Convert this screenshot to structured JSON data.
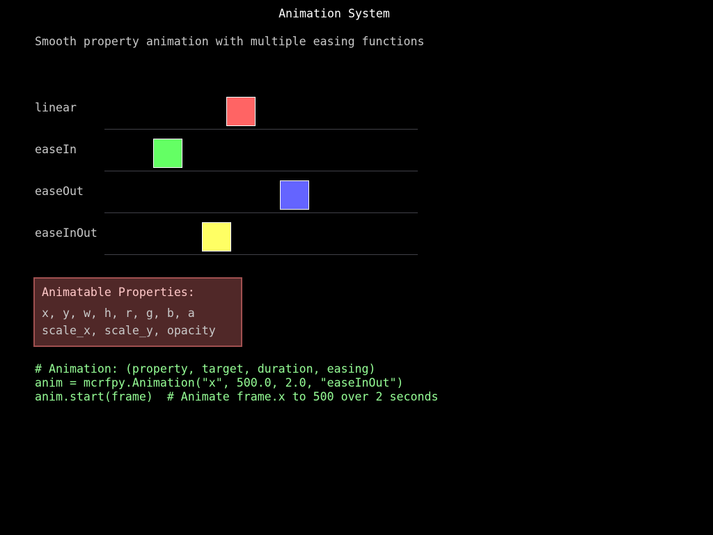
{
  "title": "Animation System",
  "subtitle": "Smooth property animation with multiple easing functions",
  "lanes": [
    {
      "label": "linear",
      "color": "#ff6464",
      "progress": 0.5
    },
    {
      "label": "easeIn",
      "color": "#64ff64",
      "progress": 0.2
    },
    {
      "label": "easeOut",
      "color": "#6464ff",
      "progress": 0.72
    },
    {
      "label": "easeInOut",
      "color": "#ffff64",
      "progress": 0.4
    }
  ],
  "properties_box": {
    "heading": "Animatable Properties:",
    "line1": "x, y, w, h, r, g, b, a",
    "line2": "scale_x, scale_y, opacity"
  },
  "code": [
    "# Animation: (property, target, duration, easing)",
    "anim = mcrfpy.Animation(\"x\", 500.0, 2.0, \"easeInOut\")",
    "anim.start(frame)  # Animate frame.x to 500 over 2 seconds"
  ]
}
